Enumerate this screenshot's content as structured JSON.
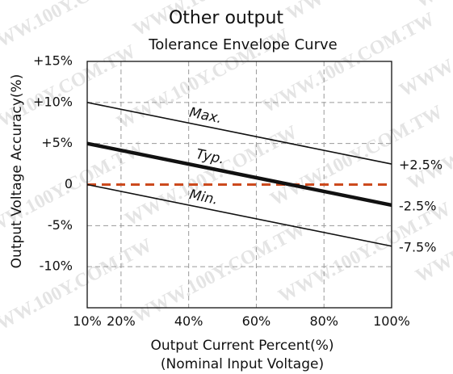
{
  "watermark_text": "WWW.100Y.COM.TW",
  "chart_data": {
    "type": "line",
    "title": "Other output",
    "subtitle": "Tolerance Envelope  Curve",
    "xlabel": "Output Current Percent(%)",
    "xlabel_note": "(Nominal Input Voltage)",
    "ylabel": "Output Voltage Accuracy(%)",
    "xlim": [
      10,
      100
    ],
    "ylim": [
      -15,
      15
    ],
    "x_ticks": [
      10,
      20,
      40,
      60,
      80,
      100
    ],
    "x_tick_labels": [
      "10%",
      "20%",
      "40%",
      "60%",
      "80%",
      "100%"
    ],
    "y_ticks": [
      15,
      10,
      5,
      0,
      -5,
      -10
    ],
    "y_tick_labels": [
      "+15%",
      "+10%",
      "+5%",
      "0",
      "-5%",
      "-10%"
    ],
    "grid": true,
    "reference_line": {
      "y": 0,
      "color": "#cc4a1e",
      "style": "dashed"
    },
    "series": [
      {
        "name": "Max.",
        "x": [
          10,
          100
        ],
        "y": [
          10,
          2.5
        ],
        "end_label": "+2.5%",
        "color": "#111111"
      },
      {
        "name": "Typ.",
        "x": [
          10,
          100
        ],
        "y": [
          5,
          -2.5
        ],
        "end_label": "-2.5%",
        "color": "#111111"
      },
      {
        "name": "Min.",
        "x": [
          10,
          100
        ],
        "y": [
          0,
          -7.5
        ],
        "end_label": "-7.5%",
        "color": "#111111"
      }
    ]
  }
}
